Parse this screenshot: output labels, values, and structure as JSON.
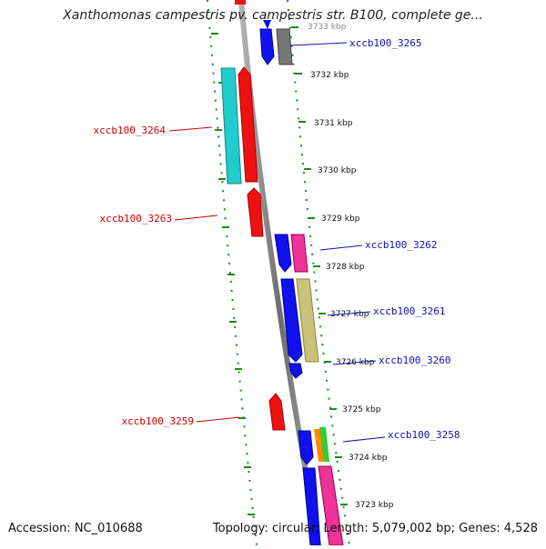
{
  "title": "Xanthomonas campestris pv. campestris str. B100, complete ge...",
  "accession_label": "Accession: NC_010688",
  "summary": "Topology: circular; Length: 5,079,002 bp; Genes: 4,528",
  "colors": {
    "backbone": "#8c8c8c",
    "tick": "#1a8c1a",
    "forward_label": "#1010b0",
    "reverse_label": "#cc0000"
  },
  "scale_ticks": [
    {
      "label": "3733 kbp"
    },
    {
      "label": "3732 kbp"
    },
    {
      "label": "3731 kbp"
    },
    {
      "label": "3730 kbp"
    },
    {
      "label": "3729 kbp"
    },
    {
      "label": "3728 kbp"
    },
    {
      "label": "3727 kbp"
    },
    {
      "label": "3726 kbp"
    },
    {
      "label": "3725 kbp"
    },
    {
      "label": "3724 kbp"
    },
    {
      "label": "3723 kbp"
    }
  ],
  "gene_labels": [
    {
      "text": "xccb100_3265",
      "strand": "forward"
    },
    {
      "text": "xccb100_3264",
      "strand": "reverse"
    },
    {
      "text": "xccb100_3263",
      "strand": "reverse"
    },
    {
      "text": "xccb100_3262",
      "strand": "forward"
    },
    {
      "text": "xccb100_3261",
      "strand": "forward"
    },
    {
      "text": "xccb100_3260",
      "strand": "forward"
    },
    {
      "text": "xccb100_3259",
      "strand": "reverse"
    },
    {
      "text": "xccb100_3258",
      "strand": "forward"
    }
  ]
}
